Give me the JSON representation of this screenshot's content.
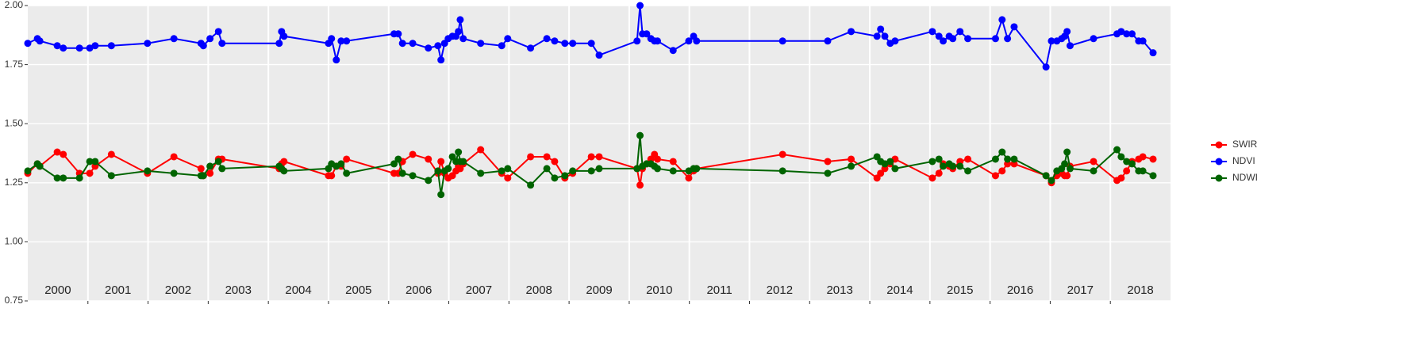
{
  "chart_data": {
    "type": "line",
    "x": [
      2000.0,
      2000.16,
      2000.2,
      2000.49,
      2000.59,
      2000.86,
      2001.03,
      2001.12,
      2001.39,
      2001.99,
      2002.43,
      2002.88,
      2002.92,
      2003.03,
      2003.17,
      2003.23,
      2004.18,
      2004.22,
      2004.26,
      2005.0,
      2005.05,
      2005.13,
      2005.21,
      2005.3,
      2006.09,
      2006.16,
      2006.23,
      2006.4,
      2006.66,
      2006.82,
      2006.87,
      2006.93,
      2006.99,
      2007.06,
      2007.12,
      2007.16,
      2007.19,
      2007.24,
      2007.53,
      2007.88,
      2007.98,
      2008.36,
      2008.63,
      2008.76,
      2008.93,
      2009.06,
      2009.37,
      2009.5,
      2010.13,
      2010.18,
      2010.22,
      2010.29,
      2010.36,
      2010.42,
      2010.47,
      2010.73,
      2010.99,
      2011.07,
      2011.12,
      2012.55,
      2013.3,
      2013.69,
      2014.12,
      2014.18,
      2014.25,
      2014.34,
      2014.42,
      2015.04,
      2015.15,
      2015.22,
      2015.32,
      2015.38,
      2015.5,
      2015.63,
      2016.09,
      2016.2,
      2016.29,
      2016.4,
      2016.93,
      2017.02,
      2017.11,
      2017.19,
      2017.24,
      2017.28,
      2017.33,
      2017.72,
      2018.11,
      2018.18,
      2018.27,
      2018.36,
      2018.47,
      2018.54,
      2018.71
    ],
    "series": [
      {
        "name": "SWIR",
        "color": "#ff0000",
        "values": [
          1.29,
          1.33,
          1.32,
          1.38,
          1.37,
          1.29,
          1.29,
          1.32,
          1.37,
          1.29,
          1.36,
          1.31,
          1.28,
          1.29,
          1.35,
          1.35,
          1.31,
          1.33,
          1.34,
          1.28,
          1.28,
          1.32,
          1.32,
          1.35,
          1.29,
          1.29,
          1.34,
          1.37,
          1.35,
          1.29,
          1.34,
          1.29,
          1.27,
          1.28,
          1.3,
          1.32,
          1.31,
          1.33,
          1.39,
          1.29,
          1.27,
          1.36,
          1.36,
          1.34,
          1.27,
          1.29,
          1.36,
          1.36,
          1.31,
          1.24,
          1.31,
          1.33,
          1.35,
          1.37,
          1.35,
          1.34,
          1.27,
          1.3,
          1.31,
          1.37,
          1.34,
          1.35,
          1.27,
          1.29,
          1.31,
          1.33,
          1.35,
          1.27,
          1.29,
          1.33,
          1.32,
          1.31,
          1.34,
          1.35,
          1.28,
          1.3,
          1.33,
          1.33,
          1.28,
          1.25,
          1.28,
          1.29,
          1.28,
          1.28,
          1.32,
          1.34,
          1.26,
          1.27,
          1.3,
          1.34,
          1.35,
          1.36,
          1.35
        ]
      },
      {
        "name": "NDVI",
        "color": "#0000ff",
        "values": [
          1.84,
          1.86,
          1.85,
          1.83,
          1.82,
          1.82,
          1.82,
          1.83,
          1.83,
          1.84,
          1.86,
          1.84,
          1.83,
          1.86,
          1.89,
          1.84,
          1.84,
          1.89,
          1.87,
          1.84,
          1.86,
          1.77,
          1.85,
          1.85,
          1.88,
          1.88,
          1.84,
          1.84,
          1.82,
          1.83,
          1.77,
          1.84,
          1.86,
          1.87,
          1.87,
          1.89,
          1.94,
          1.86,
          1.84,
          1.83,
          1.86,
          1.82,
          1.86,
          1.85,
          1.84,
          1.84,
          1.84,
          1.79,
          1.85,
          2.0,
          1.88,
          1.88,
          1.86,
          1.85,
          1.85,
          1.81,
          1.85,
          1.87,
          1.85,
          1.85,
          1.85,
          1.89,
          1.87,
          1.9,
          1.87,
          1.84,
          1.85,
          1.89,
          1.87,
          1.85,
          1.87,
          1.86,
          1.89,
          1.86,
          1.86,
          1.94,
          1.86,
          1.91,
          1.74,
          1.85,
          1.85,
          1.86,
          1.87,
          1.89,
          1.83,
          1.86,
          1.88,
          1.89,
          1.88,
          1.88,
          1.85,
          1.85,
          1.8
        ]
      },
      {
        "name": "NDWI",
        "color": "#006400",
        "values": [
          1.3,
          1.33,
          1.32,
          1.27,
          1.27,
          1.27,
          1.34,
          1.34,
          1.28,
          1.3,
          1.29,
          1.28,
          1.28,
          1.32,
          1.34,
          1.31,
          1.32,
          1.31,
          1.3,
          1.31,
          1.33,
          1.32,
          1.33,
          1.29,
          1.33,
          1.35,
          1.29,
          1.28,
          1.26,
          1.3,
          1.2,
          1.3,
          1.31,
          1.36,
          1.34,
          1.38,
          1.34,
          1.34,
          1.29,
          1.3,
          1.31,
          1.24,
          1.31,
          1.27,
          1.28,
          1.3,
          1.3,
          1.31,
          1.31,
          1.45,
          1.32,
          1.33,
          1.33,
          1.32,
          1.31,
          1.3,
          1.3,
          1.31,
          1.31,
          1.3,
          1.29,
          1.32,
          1.36,
          1.34,
          1.33,
          1.34,
          1.31,
          1.34,
          1.35,
          1.32,
          1.33,
          1.32,
          1.32,
          1.3,
          1.35,
          1.38,
          1.35,
          1.35,
          1.28,
          1.26,
          1.3,
          1.31,
          1.33,
          1.38,
          1.31,
          1.3,
          1.39,
          1.36,
          1.34,
          1.33,
          1.3,
          1.3,
          1.28
        ]
      }
    ],
    "xlim": [
      2000,
      2019
    ],
    "xticks": [
      2001,
      2002,
      2003,
      2004,
      2005,
      2006,
      2007,
      2008,
      2009,
      2010,
      2011,
      2012,
      2013,
      2014,
      2015,
      2016,
      2017,
      2018
    ],
    "year_labels": [
      {
        "value": 2000.5,
        "label": "2000"
      },
      {
        "value": 2001.5,
        "label": "2001"
      },
      {
        "value": 2002.5,
        "label": "2002"
      },
      {
        "value": 2003.5,
        "label": "2003"
      },
      {
        "value": 2004.5,
        "label": "2004"
      },
      {
        "value": 2005.5,
        "label": "2005"
      },
      {
        "value": 2006.5,
        "label": "2006"
      },
      {
        "value": 2007.5,
        "label": "2007"
      },
      {
        "value": 2008.5,
        "label": "2008"
      },
      {
        "value": 2009.5,
        "label": "2009"
      },
      {
        "value": 2010.5,
        "label": "2010"
      },
      {
        "value": 2011.5,
        "label": "2011"
      },
      {
        "value": 2012.5,
        "label": "2012"
      },
      {
        "value": 2013.5,
        "label": "2013"
      },
      {
        "value": 2014.5,
        "label": "2014"
      },
      {
        "value": 2015.5,
        "label": "2015"
      },
      {
        "value": 2016.5,
        "label": "2016"
      },
      {
        "value": 2017.5,
        "label": "2017"
      },
      {
        "value": 2018.5,
        "label": "2018"
      }
    ],
    "ylim": [
      0.75,
      2.0
    ],
    "yticks": [
      0.75,
      {
        "value": 1.0,
        "label": "1.00"
      },
      1.25,
      {
        "value": 1.5,
        "label": "1.50"
      },
      1.75,
      {
        "value": 2.0,
        "label": "2.00"
      }
    ],
    "grid": true,
    "legend": "right"
  }
}
